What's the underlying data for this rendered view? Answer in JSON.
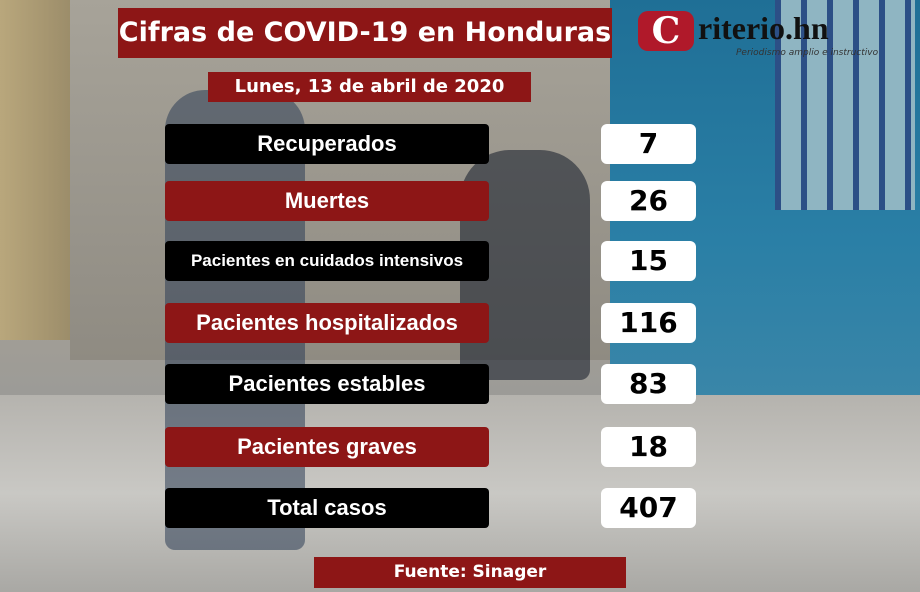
{
  "title": "Cifras de COVID-19 en Honduras",
  "date": "Lunes, 13 de abril de 2020",
  "logo": {
    "name": "Criterio.hn",
    "initial": "C",
    "rest": "riterio.hn",
    "tagline": "Periodismo amplio e instructivo",
    "color": "#b0192a"
  },
  "rows": [
    {
      "label": "Recuperados",
      "value": "7",
      "style": "black"
    },
    {
      "label": "Muertes",
      "value": "26",
      "style": "red"
    },
    {
      "label": "Pacientes en cuidados intensivos",
      "value": "15",
      "style": "black"
    },
    {
      "label": "Pacientes hospitalizados",
      "value": "116",
      "style": "red"
    },
    {
      "label": "Pacientes estables",
      "value": "83",
      "style": "black"
    },
    {
      "label": "Pacientes graves",
      "value": "18",
      "style": "red"
    },
    {
      "label": "Total casos",
      "value": "407",
      "style": "black"
    }
  ],
  "source": "Fuente: Sinager",
  "colors": {
    "red": "#8d1616",
    "black": "#000000",
    "value_bg": "#ffffff"
  }
}
